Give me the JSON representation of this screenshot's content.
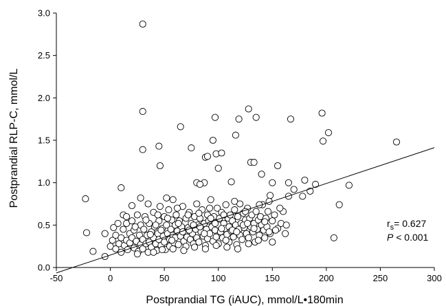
{
  "chart_data": {
    "type": "scatter",
    "xlabel": "Postprandial TG (iAUC), mmol/L•180min",
    "ylabel": "Postprandial RLP-C, mmol/L",
    "xlim": [
      -50,
      300
    ],
    "ylim": [
      0.0,
      3.0
    ],
    "xticks": [
      -50,
      0,
      50,
      100,
      150,
      200,
      250,
      300
    ],
    "yticks": [
      0.0,
      0.5,
      1.0,
      1.5,
      2.0,
      2.5,
      3.0
    ],
    "ytick_labels": [
      "0.0",
      "0.5",
      "1.0",
      "1.5",
      "2.0",
      "2.5",
      "3.0"
    ],
    "grid": false,
    "legend": "none",
    "marker": "open-circle",
    "regression_line": {
      "intercept": 0.147,
      "slope": 0.00422,
      "x_range": [
        -50,
        300
      ]
    },
    "annotation": {
      "rs_prefix": "r",
      "rs_subscript": "s",
      "rs_value": "= 0.627",
      "p_label": "P",
      "p_value": " < 0.001"
    },
    "points": [
      [
        30,
        2.87
      ],
      [
        30,
        1.84
      ],
      [
        30,
        1.39
      ],
      [
        45,
        1.43
      ],
      [
        46,
        1.2
      ],
      [
        65,
        1.66
      ],
      [
        75,
        1.41
      ],
      [
        80,
        1.0
      ],
      [
        87,
        1.0
      ],
      [
        88,
        1.3
      ],
      [
        90,
        1.31
      ],
      [
        95,
        1.5
      ],
      [
        97,
        1.77
      ],
      [
        98,
        1.34
      ],
      [
        100,
        1.17
      ],
      [
        103,
        1.35
      ],
      [
        116,
        1.56
      ],
      [
        119,
        1.75
      ],
      [
        128,
        1.87
      ],
      [
        130,
        1.24
      ],
      [
        133,
        1.24
      ],
      [
        135,
        1.77
      ],
      [
        140,
        1.1
      ],
      [
        150,
        1.0
      ],
      [
        155,
        1.2
      ],
      [
        165,
        1.0
      ],
      [
        167,
        1.75
      ],
      [
        170,
        0.92
      ],
      [
        180,
        1.03
      ],
      [
        185,
        0.9
      ],
      [
        190,
        0.98
      ],
      [
        196,
        1.82
      ],
      [
        197,
        1.49
      ],
      [
        202,
        1.59
      ],
      [
        207,
        0.35
      ],
      [
        212,
        0.74
      ],
      [
        221,
        0.97
      ],
      [
        265,
        1.48
      ],
      [
        -23,
        0.81
      ],
      [
        -22,
        0.41
      ],
      [
        -16,
        0.19
      ],
      [
        -5,
        0.4
      ],
      [
        -5,
        0.13
      ],
      [
        10,
        0.94
      ],
      [
        20,
        0.73
      ],
      [
        28,
        0.82
      ],
      [
        58,
        0.8
      ],
      [
        83,
        0.98
      ],
      [
        112,
        1.01
      ],
      [
        148,
        0.85
      ],
      [
        165,
        0.84
      ],
      [
        178,
        0.84
      ],
      [
        0,
        0.25
      ],
      [
        2,
        0.32
      ],
      [
        5,
        0.38
      ],
      [
        5,
        0.22
      ],
      [
        8,
        0.28
      ],
      [
        10,
        0.35
      ],
      [
        10,
        0.18
      ],
      [
        12,
        0.45
      ],
      [
        13,
        0.26
      ],
      [
        15,
        0.32
      ],
      [
        15,
        0.52
      ],
      [
        16,
        0.21
      ],
      [
        18,
        0.4
      ],
      [
        18,
        0.29
      ],
      [
        20,
        0.35
      ],
      [
        20,
        0.55
      ],
      [
        22,
        0.23
      ],
      [
        22,
        0.44
      ],
      [
        24,
        0.31
      ],
      [
        25,
        0.62
      ],
      [
        26,
        0.19
      ],
      [
        27,
        0.38
      ],
      [
        28,
        0.27
      ],
      [
        28,
        0.5
      ],
      [
        30,
        0.33
      ],
      [
        30,
        0.22
      ],
      [
        31,
        0.45
      ],
      [
        32,
        0.6
      ],
      [
        33,
        0.28
      ],
      [
        34,
        0.38
      ],
      [
        35,
        0.18
      ],
      [
        36,
        0.52
      ],
      [
        36,
        0.3
      ],
      [
        38,
        0.42
      ],
      [
        38,
        0.24
      ],
      [
        40,
        0.35
      ],
      [
        40,
        0.65
      ],
      [
        41,
        0.48
      ],
      [
        42,
        0.28
      ],
      [
        43,
        0.2
      ],
      [
        44,
        0.4
      ],
      [
        45,
        0.55
      ],
      [
        45,
        0.33
      ],
      [
        46,
        0.72
      ],
      [
        47,
        0.26
      ],
      [
        48,
        0.46
      ],
      [
        49,
        0.37
      ],
      [
        50,
        0.3
      ],
      [
        50,
        0.6
      ],
      [
        51,
        0.21
      ],
      [
        52,
        0.5
      ],
      [
        53,
        0.4
      ],
      [
        54,
        0.68
      ],
      [
        55,
        0.33
      ],
      [
        55,
        0.25
      ],
      [
        56,
        0.45
      ],
      [
        57,
        0.56
      ],
      [
        58,
        0.38
      ],
      [
        59,
        0.29
      ],
      [
        60,
        0.5
      ],
      [
        60,
        0.35
      ],
      [
        61,
        0.62
      ],
      [
        62,
        0.43
      ],
      [
        63,
        0.27
      ],
      [
        64,
        0.55
      ],
      [
        65,
        0.37
      ],
      [
        66,
        0.48
      ],
      [
        67,
        0.72
      ],
      [
        68,
        0.31
      ],
      [
        69,
        0.42
      ],
      [
        70,
        0.58
      ],
      [
        70,
        0.25
      ],
      [
        71,
        0.36
      ],
      [
        72,
        0.47
      ],
      [
        73,
        0.65
      ],
      [
        74,
        0.33
      ],
      [
        75,
        0.52
      ],
      [
        76,
        0.4
      ],
      [
        77,
        0.28
      ],
      [
        78,
        0.6
      ],
      [
        79,
        0.45
      ],
      [
        80,
        0.35
      ],
      [
        80,
        0.75
      ],
      [
        81,
        0.5
      ],
      [
        82,
        0.3
      ],
      [
        83,
        0.58
      ],
      [
        84,
        0.42
      ],
      [
        85,
        0.68
      ],
      [
        86,
        0.37
      ],
      [
        87,
        0.52
      ],
      [
        88,
        0.26
      ],
      [
        89,
        0.45
      ],
      [
        90,
        0.62
      ],
      [
        90,
        0.34
      ],
      [
        91,
        0.55
      ],
      [
        92,
        0.4
      ],
      [
        93,
        0.8
      ],
      [
        94,
        0.48
      ],
      [
        95,
        0.31
      ],
      [
        96,
        0.6
      ],
      [
        97,
        0.44
      ],
      [
        98,
        0.36
      ],
      [
        99,
        0.7
      ],
      [
        100,
        0.5
      ],
      [
        100,
        0.28
      ],
      [
        101,
        0.58
      ],
      [
        102,
        0.42
      ],
      [
        103,
        0.65
      ],
      [
        104,
        0.35
      ],
      [
        105,
        0.52
      ],
      [
        106,
        0.46
      ],
      [
        107,
        0.74
      ],
      [
        108,
        0.39
      ],
      [
        109,
        0.58
      ],
      [
        110,
        0.3
      ],
      [
        110,
        0.48
      ],
      [
        111,
        0.62
      ],
      [
        112,
        0.43
      ],
      [
        113,
        0.55
      ],
      [
        114,
        0.36
      ],
      [
        115,
        0.68
      ],
      [
        116,
        0.5
      ],
      [
        117,
        0.27
      ],
      [
        118,
        0.6
      ],
      [
        119,
        0.45
      ],
      [
        120,
        0.38
      ],
      [
        120,
        0.75
      ],
      [
        121,
        0.52
      ],
      [
        122,
        0.33
      ],
      [
        123,
        0.64
      ],
      [
        124,
        0.47
      ],
      [
        125,
        0.56
      ],
      [
        126,
        0.4
      ],
      [
        127,
        0.7
      ],
      [
        128,
        0.35
      ],
      [
        129,
        0.58
      ],
      [
        130,
        0.48
      ],
      [
        131,
        0.62
      ],
      [
        132,
        0.42
      ],
      [
        133,
        0.52
      ],
      [
        134,
        0.3
      ],
      [
        135,
        0.66
      ],
      [
        136,
        0.45
      ],
      [
        137,
        0.56
      ],
      [
        138,
        0.38
      ],
      [
        139,
        0.6
      ],
      [
        140,
        0.5
      ],
      [
        141,
        0.74
      ],
      [
        142,
        0.44
      ],
      [
        143,
        0.35
      ],
      [
        144,
        0.58
      ],
      [
        145,
        0.48
      ],
      [
        146,
        0.66
      ],
      [
        148,
        0.4
      ],
      [
        150,
        0.55
      ],
      [
        150,
        0.3
      ],
      [
        152,
        0.62
      ],
      [
        155,
        0.46
      ],
      [
        158,
        0.52
      ],
      [
        160,
        0.66
      ],
      [
        162,
        0.4
      ],
      [
        12,
        0.62
      ],
      [
        25,
        0.16
      ],
      [
        35,
        0.75
      ],
      [
        44,
        0.62
      ],
      [
        52,
        0.82
      ],
      [
        62,
        0.7
      ],
      [
        72,
        0.62
      ],
      [
        82,
        0.64
      ],
      [
        92,
        0.7
      ],
      [
        105,
        0.62
      ],
      [
        115,
        0.78
      ],
      [
        125,
        0.66
      ],
      [
        138,
        0.74
      ],
      [
        147,
        0.78
      ],
      [
        157,
        0.7
      ],
      [
        40,
        0.18
      ],
      [
        48,
        0.21
      ],
      [
        58,
        0.22
      ],
      [
        68,
        0.2
      ],
      [
        78,
        0.24
      ],
      [
        88,
        0.22
      ],
      [
        98,
        0.26
      ],
      [
        108,
        0.24
      ],
      [
        118,
        0.22
      ],
      [
        128,
        0.28
      ],
      [
        3,
        0.47
      ],
      [
        7,
        0.52
      ],
      [
        15,
        0.6
      ],
      [
        23,
        0.48
      ],
      [
        33,
        0.56
      ],
      [
        42,
        0.5
      ],
      [
        53,
        0.58
      ],
      [
        63,
        0.52
      ],
      [
        73,
        0.44
      ],
      [
        83,
        0.48
      ],
      [
        93,
        0.58
      ],
      [
        103,
        0.46
      ],
      [
        113,
        0.44
      ],
      [
        123,
        0.5
      ],
      [
        133,
        0.46
      ],
      [
        143,
        0.54
      ],
      [
        153,
        0.44
      ],
      [
        163,
        0.5
      ],
      [
        37,
        0.39
      ],
      [
        47,
        0.44
      ],
      [
        57,
        0.32
      ],
      [
        67,
        0.42
      ],
      [
        77,
        0.5
      ],
      [
        87,
        0.4
      ],
      [
        97,
        0.52
      ],
      [
        107,
        0.32
      ],
      [
        117,
        0.42
      ],
      [
        127,
        0.52
      ],
      [
        137,
        0.32
      ],
      [
        147,
        0.42
      ]
    ]
  }
}
